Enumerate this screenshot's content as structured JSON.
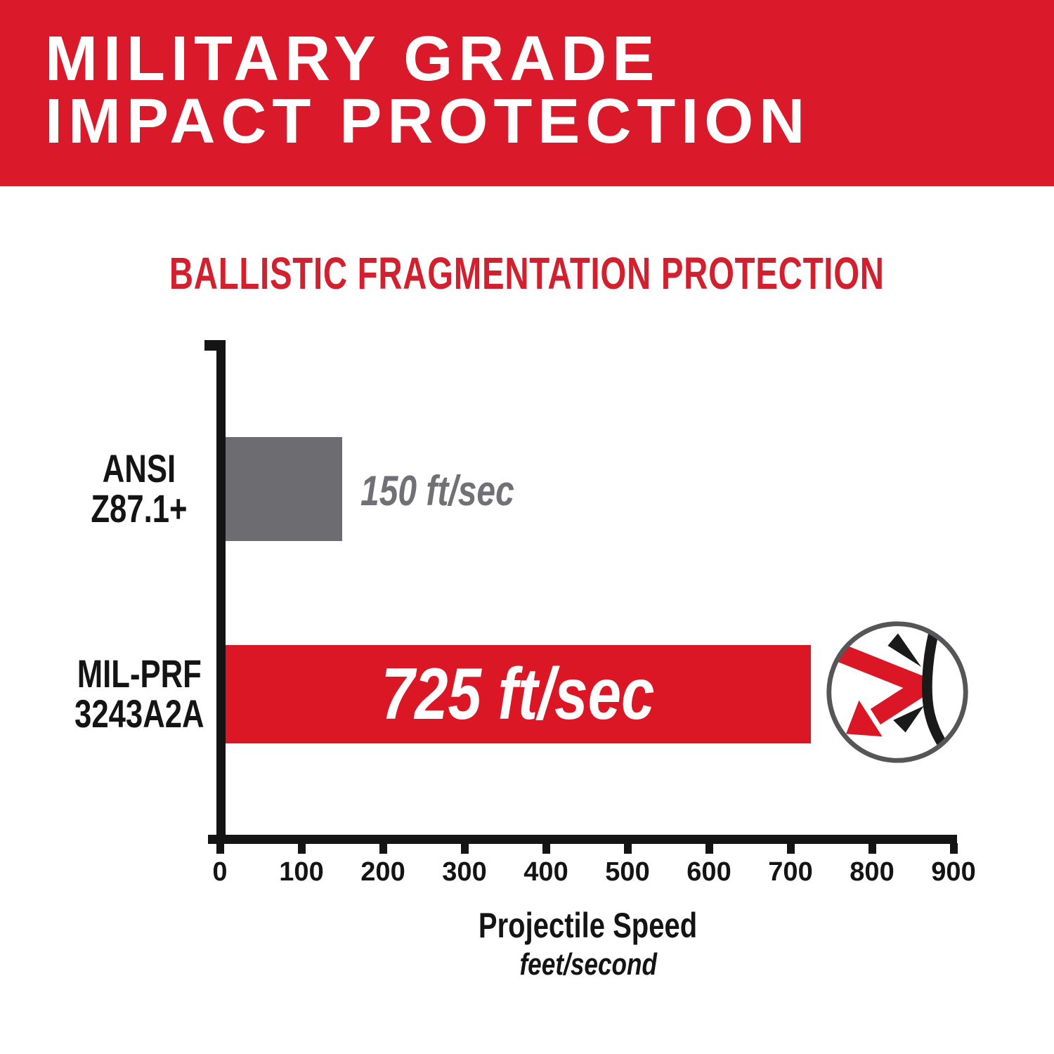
{
  "banner": {
    "line1": "MILITARY GRADE",
    "line2": "IMPACT PROTECTION"
  },
  "chart_title": "BALLISTIC FRAGMENTATION PROTECTION",
  "chart_data": {
    "type": "bar",
    "orientation": "horizontal",
    "title": "BALLISTIC FRAGMENTATION PROTECTION",
    "categories": [
      "ANSI Z87.1+",
      "MIL-PRF 3243A2A"
    ],
    "values": [
      150,
      725
    ],
    "value_labels": [
      "150 ft/sec",
      "725 ft/sec"
    ],
    "bar_colors": [
      "#6C6C71",
      "#DB1625"
    ],
    "xlabel": "Projectile Speed",
    "xlabel_unit": "feet/second",
    "xlim": [
      0,
      900
    ],
    "xticks": [
      0,
      100,
      200,
      300,
      400,
      500,
      600,
      700,
      800,
      900
    ],
    "grid": false,
    "legend": "none"
  },
  "rows": [
    {
      "label_line1": "ANSI",
      "label_line2": "Z87.1+",
      "value_label": "150 ft/sec"
    },
    {
      "label_line1": "MIL-PRF",
      "label_line2": "3243A2A",
      "value_label": "725 ft/sec"
    }
  ],
  "x_axis": {
    "title": "Projectile Speed",
    "subtitle": "feet/second"
  },
  "icon": {
    "name": "projectile-deflection-icon"
  },
  "colors": {
    "banner_red": "#DA1A2A",
    "title_red": "#D2202E",
    "bar_red": "#DB1625",
    "bar_gray": "#6C6C71",
    "value_gray": "#707076",
    "axis_black": "#141414",
    "icon_ring_gray": "#565659"
  }
}
